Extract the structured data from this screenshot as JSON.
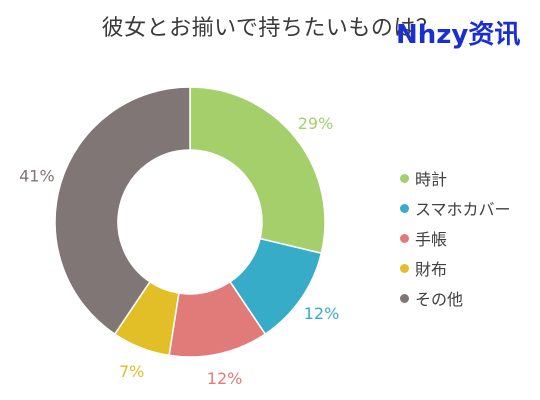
{
  "title": "彼女とお揃いで持ちたいものは？",
  "watermark": "Nhzy资讯",
  "chart_data": {
    "type": "donut",
    "title": "彼女とお揃いで持ちたいものは？",
    "unit": "%",
    "legend_position": "right",
    "slices": [
      {
        "label": "時計",
        "value": 29,
        "display": "29%",
        "color": "#a5cf6a"
      },
      {
        "label": "スマホカバー",
        "value": 12,
        "display": "12%",
        "color": "#36acc9"
      },
      {
        "label": "手帳",
        "value": 12,
        "display": "12%",
        "color": "#e07b79"
      },
      {
        "label": "財布",
        "value": 7,
        "display": "7%",
        "color": "#e2be27"
      },
      {
        "label": "その他",
        "value": 41,
        "display": "41%",
        "color": "#7f7675"
      }
    ]
  }
}
